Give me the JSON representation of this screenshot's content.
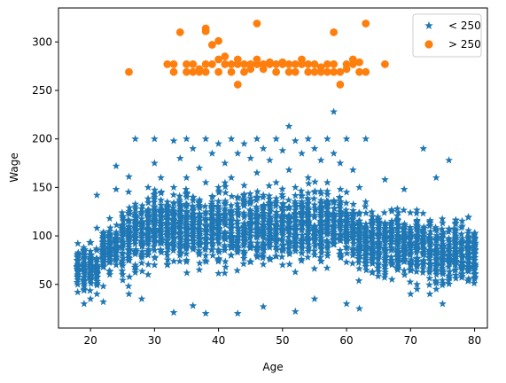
{
  "chart_data": {
    "type": "scatter",
    "title": "",
    "xlabel": "Age",
    "ylabel": "Wage",
    "xlim": [
      15,
      82
    ],
    "ylim": [
      5,
      335
    ],
    "xticks": [
      20,
      30,
      40,
      50,
      60,
      70,
      80
    ],
    "yticks": [
      50,
      100,
      150,
      200,
      250,
      300
    ],
    "grid": false,
    "legend_position": "top-right",
    "series": [
      {
        "name": "< 250",
        "marker": "star",
        "color": "#1f77b4",
        "distribution_note": "dense cloud: Age 18–80, Wage ~20–228",
        "points": [
          [
            18,
            75
          ],
          [
            18,
            60
          ],
          [
            18,
            42
          ],
          [
            18,
            70
          ],
          [
            18,
            55
          ],
          [
            19,
            50
          ],
          [
            19,
            30
          ],
          [
            19,
            80
          ],
          [
            19,
            65
          ],
          [
            19,
            45
          ],
          [
            20,
            78
          ],
          [
            20,
            35
          ],
          [
            20,
            55
          ],
          [
            20,
            68
          ],
          [
            21,
            108
          ],
          [
            21,
            142
          ],
          [
            21,
            85
          ],
          [
            21,
            60
          ],
          [
            21,
            40
          ],
          [
            22,
            90
          ],
          [
            22,
            70
          ],
          [
            22,
            48
          ],
          [
            22,
            32
          ],
          [
            23,
            100
          ],
          [
            23,
            118
          ],
          [
            23,
            60
          ],
          [
            23,
            80
          ],
          [
            24,
            172
          ],
          [
            24,
            148
          ],
          [
            24,
            95
          ],
          [
            24,
            70
          ],
          [
            25,
            120
          ],
          [
            25,
            88
          ],
          [
            25,
            60
          ],
          [
            26,
            161
          ],
          [
            26,
            110
          ],
          [
            26,
            78
          ],
          [
            26,
            40
          ],
          [
            27,
            200
          ],
          [
            27,
            130
          ],
          [
            27,
            95
          ],
          [
            27,
            65
          ],
          [
            28,
            128
          ],
          [
            28,
            100
          ],
          [
            28,
            72
          ],
          [
            28,
            35
          ],
          [
            29,
            150
          ],
          [
            29,
            115
          ],
          [
            29,
            80
          ],
          [
            29,
            60
          ],
          [
            30,
            175
          ],
          [
            30,
            200
          ],
          [
            30,
            140
          ],
          [
            30,
            98
          ],
          [
            30,
            70
          ],
          [
            31,
            160
          ],
          [
            31,
            120
          ],
          [
            31,
            85
          ],
          [
            32,
            135
          ],
          [
            32,
            95
          ],
          [
            32,
            70
          ],
          [
            33,
            198
          ],
          [
            33,
            150
          ],
          [
            33,
            105
          ],
          [
            33,
            21
          ],
          [
            34,
            180
          ],
          [
            34,
            125
          ],
          [
            34,
            88
          ],
          [
            35,
            200
          ],
          [
            35,
            160
          ],
          [
            35,
            112
          ],
          [
            35,
            75
          ],
          [
            36,
            190
          ],
          [
            36,
            140
          ],
          [
            36,
            95
          ],
          [
            36,
            28
          ],
          [
            37,
            170
          ],
          [
            37,
            130
          ],
          [
            37,
            90
          ],
          [
            37,
            65
          ],
          [
            38,
            200
          ],
          [
            38,
            155
          ],
          [
            38,
            110
          ],
          [
            38,
            20
          ],
          [
            39,
            185
          ],
          [
            39,
            135
          ],
          [
            39,
            92
          ],
          [
            40,
            195
          ],
          [
            40,
            150
          ],
          [
            40,
            105
          ],
          [
            40,
            75
          ],
          [
            41,
            175
          ],
          [
            41,
            128
          ],
          [
            41,
            88
          ],
          [
            42,
            200
          ],
          [
            42,
            160
          ],
          [
            42,
            115
          ],
          [
            42,
            80
          ],
          [
            43,
            185
          ],
          [
            43,
            140
          ],
          [
            43,
            98
          ],
          [
            43,
            20
          ],
          [
            44,
            195
          ],
          [
            44,
            152
          ],
          [
            44,
            108
          ],
          [
            45,
            180
          ],
          [
            45,
            135
          ],
          [
            45,
            90
          ],
          [
            46,
            200
          ],
          [
            46,
            165
          ],
          [
            46,
            118
          ],
          [
            46,
            80
          ],
          [
            47,
            190
          ],
          [
            47,
            142
          ],
          [
            47,
            100
          ],
          [
            47,
            27
          ],
          [
            48,
            178
          ],
          [
            48,
            130
          ],
          [
            48,
            88
          ],
          [
            49,
            200
          ],
          [
            49,
            155
          ],
          [
            49,
            110
          ],
          [
            50,
            188
          ],
          [
            50,
            140
          ],
          [
            50,
            95
          ],
          [
            50,
            70
          ],
          [
            51,
            213
          ],
          [
            51,
            168
          ],
          [
            51,
            120
          ],
          [
            52,
            198
          ],
          [
            52,
            150
          ],
          [
            52,
            105
          ],
          [
            52,
            22
          ],
          [
            53,
            185
          ],
          [
            53,
            135
          ],
          [
            53,
            92
          ],
          [
            54,
            200
          ],
          [
            54,
            160
          ],
          [
            54,
            112
          ],
          [
            55,
            190
          ],
          [
            55,
            145
          ],
          [
            55,
            100
          ],
          [
            55,
            35
          ],
          [
            56,
            178
          ],
          [
            56,
            130
          ],
          [
            56,
            90
          ],
          [
            57,
            200
          ],
          [
            57,
            155
          ],
          [
            57,
            110
          ],
          [
            58,
            228
          ],
          [
            58,
            185
          ],
          [
            58,
            135
          ],
          [
            58,
            95
          ],
          [
            59,
            175
          ],
          [
            59,
            125
          ],
          [
            59,
            85
          ],
          [
            60,
            200
          ],
          [
            60,
            145
          ],
          [
            60,
            100
          ],
          [
            60,
            30
          ],
          [
            61,
            168
          ],
          [
            61,
            120
          ],
          [
            61,
            85
          ],
          [
            62,
            150
          ],
          [
            62,
            110
          ],
          [
            62,
            25
          ],
          [
            63,
            200
          ],
          [
            63,
            135
          ],
          [
            63,
            90
          ],
          [
            64,
            120
          ],
          [
            64,
            80
          ],
          [
            65,
            100
          ],
          [
            65,
            70
          ],
          [
            66,
            158
          ],
          [
            66,
            90
          ],
          [
            66,
            60
          ],
          [
            67,
            110
          ],
          [
            67,
            75
          ],
          [
            68,
            95
          ],
          [
            68,
            65
          ],
          [
            69,
            148
          ],
          [
            69,
            80
          ],
          [
            70,
            100
          ],
          [
            70,
            40
          ],
          [
            71,
            85
          ],
          [
            71,
            50
          ],
          [
            72,
            190
          ],
          [
            72,
            100
          ],
          [
            73,
            95
          ],
          [
            73,
            40
          ],
          [
            74,
            160
          ],
          [
            74,
            80
          ],
          [
            75,
            65
          ],
          [
            75,
            30
          ],
          [
            76,
            178
          ],
          [
            76,
            75
          ],
          [
            77,
            100
          ],
          [
            80,
            92
          ],
          [
            80,
            85
          ],
          [
            80,
            78
          ]
        ]
      },
      {
        "name": "> 250",
        "marker": "circle",
        "color": "#ff7f0e",
        "points": [
          [
            26,
            269
          ],
          [
            32,
            277
          ],
          [
            33,
            269
          ],
          [
            33,
            277
          ],
          [
            34,
            310
          ],
          [
            35,
            269
          ],
          [
            35,
            277
          ],
          [
            36,
            269
          ],
          [
            36,
            277
          ],
          [
            37,
            269
          ],
          [
            37,
            272
          ],
          [
            38,
            314
          ],
          [
            38,
            311
          ],
          [
            38,
            269
          ],
          [
            38,
            277
          ],
          [
            39,
            297
          ],
          [
            39,
            277
          ],
          [
            40,
            301
          ],
          [
            40,
            282
          ],
          [
            40,
            269
          ],
          [
            41,
            277
          ],
          [
            41,
            285
          ],
          [
            42,
            277
          ],
          [
            42,
            269
          ],
          [
            43,
            282
          ],
          [
            43,
            256
          ],
          [
            43,
            277
          ],
          [
            44,
            269
          ],
          [
            44,
            277
          ],
          [
            45,
            272
          ],
          [
            45,
            277
          ],
          [
            46,
            319
          ],
          [
            46,
            282
          ],
          [
            46,
            277
          ],
          [
            47,
            277
          ],
          [
            47,
            272
          ],
          [
            48,
            279
          ],
          [
            48,
            277
          ],
          [
            49,
            269
          ],
          [
            49,
            277
          ],
          [
            50,
            277
          ],
          [
            50,
            279
          ],
          [
            51,
            269
          ],
          [
            51,
            277
          ],
          [
            52,
            269
          ],
          [
            52,
            277
          ],
          [
            53,
            282
          ],
          [
            53,
            277
          ],
          [
            54,
            269
          ],
          [
            54,
            277
          ],
          [
            55,
            277
          ],
          [
            55,
            269
          ],
          [
            56,
            269
          ],
          [
            56,
            274
          ],
          [
            57,
            277
          ],
          [
            57,
            269
          ],
          [
            58,
            310
          ],
          [
            58,
            277
          ],
          [
            58,
            269
          ],
          [
            59,
            256
          ],
          [
            59,
            269
          ],
          [
            60,
            272
          ],
          [
            60,
            277
          ],
          [
            61,
            282
          ],
          [
            61,
            277
          ],
          [
            62,
            269
          ],
          [
            62,
            279
          ],
          [
            63,
            319
          ],
          [
            63,
            269
          ],
          [
            66,
            277
          ]
        ]
      }
    ]
  }
}
